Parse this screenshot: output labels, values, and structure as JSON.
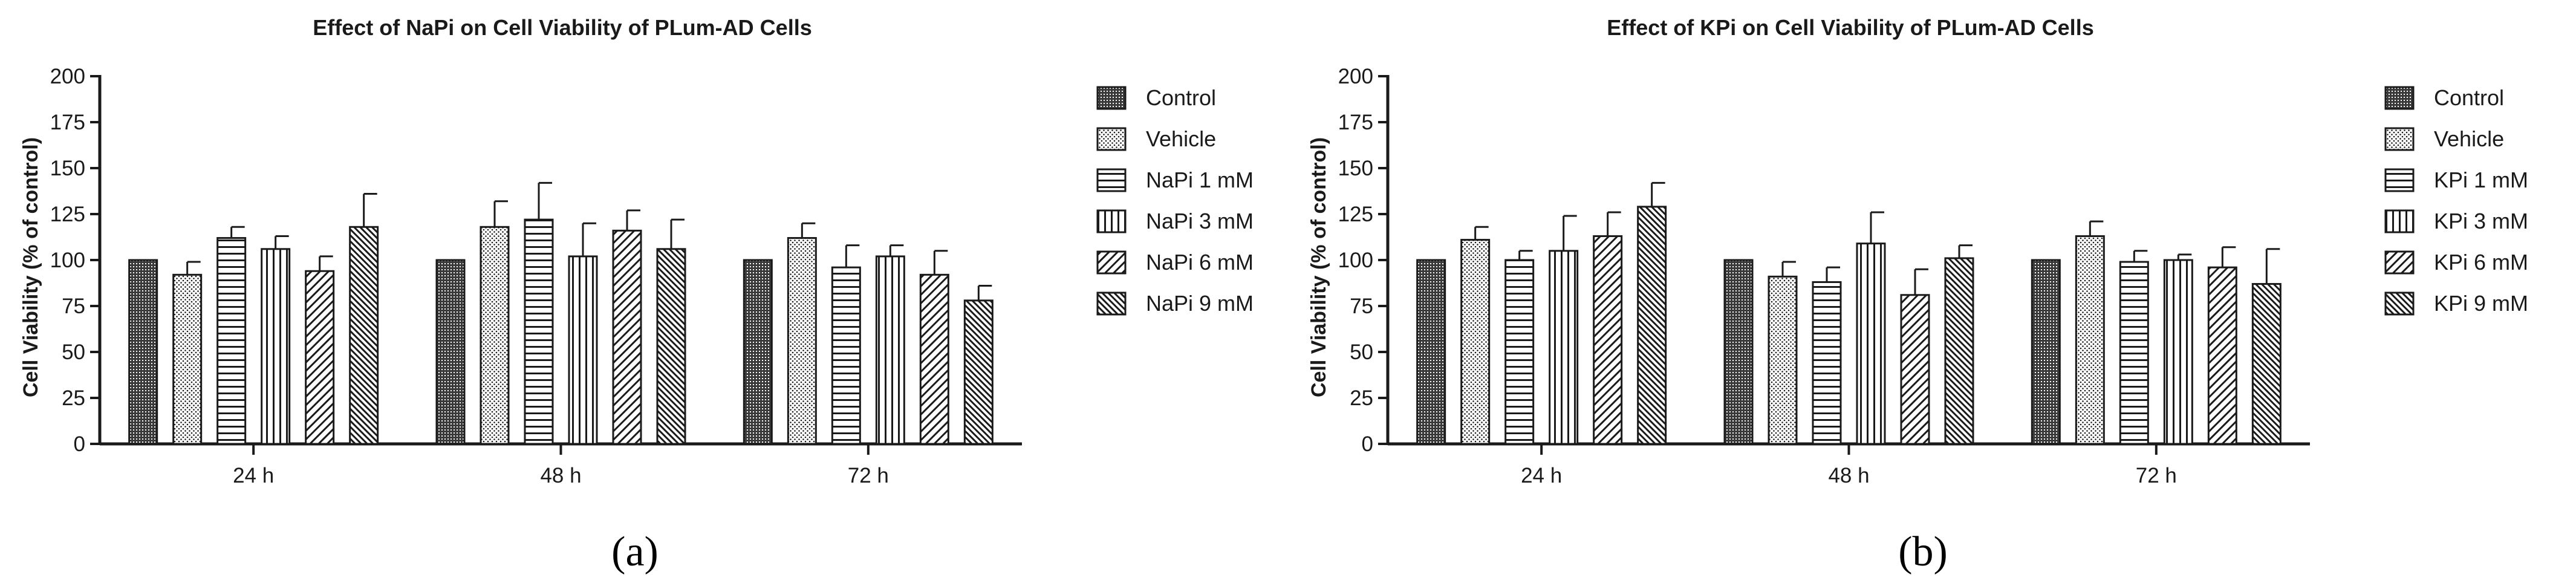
{
  "colors": {
    "ink": "#1a1a1a",
    "background": "#ffffff"
  },
  "chart_data": [
    {
      "type": "bar",
      "panel_label": "(a)",
      "title": "Effect of NaPi on Cell Viability of PLum-AD Cells",
      "xlabel": "",
      "ylabel": "Cell Viability (% of control)",
      "ylim": [
        0,
        200
      ],
      "yticks": [
        0,
        25,
        50,
        75,
        100,
        125,
        150,
        175,
        200
      ],
      "categories": [
        "24 h",
        "48 h",
        "72 h"
      ],
      "legend_position": "right",
      "series": [
        {
          "name": "Control",
          "pattern": "crosshatch-dense",
          "values": [
            100,
            100,
            100
          ],
          "errors": [
            0,
            0,
            0
          ]
        },
        {
          "name": "Vehicle",
          "pattern": "dots",
          "values": [
            92,
            118,
            112
          ],
          "errors": [
            7,
            14,
            8
          ]
        },
        {
          "name": "NaPi 1 mM",
          "pattern": "horizontal",
          "values": [
            112,
            122,
            96
          ],
          "errors": [
            6,
            20,
            12
          ]
        },
        {
          "name": "NaPi 3 mM",
          "pattern": "vertical",
          "values": [
            106,
            102,
            102
          ],
          "errors": [
            7,
            18,
            6
          ]
        },
        {
          "name": "NaPi 6 mM",
          "pattern": "diagonal",
          "values": [
            94,
            116,
            92
          ],
          "errors": [
            8,
            11,
            13
          ]
        },
        {
          "name": "NaPi 9 mM",
          "pattern": "diagonal-dense",
          "values": [
            118,
            106,
            78
          ],
          "errors": [
            18,
            16,
            8
          ]
        }
      ]
    },
    {
      "type": "bar",
      "panel_label": "(b)",
      "title": "Effect of KPi on Cell Viability of PLum-AD Cells",
      "xlabel": "",
      "ylabel": "Cell Viability (% of control)",
      "ylim": [
        0,
        200
      ],
      "yticks": [
        0,
        25,
        50,
        75,
        100,
        125,
        150,
        175,
        200
      ],
      "categories": [
        "24 h",
        "48 h",
        "72 h"
      ],
      "legend_position": "right",
      "series": [
        {
          "name": "Control",
          "pattern": "crosshatch-dense",
          "values": [
            100,
            100,
            100
          ],
          "errors": [
            0,
            0,
            0
          ]
        },
        {
          "name": "Vehicle",
          "pattern": "dots",
          "values": [
            111,
            91,
            113
          ],
          "errors": [
            7,
            8,
            8
          ]
        },
        {
          "name": "KPi 1 mM",
          "pattern": "horizontal",
          "values": [
            100,
            88,
            99
          ],
          "errors": [
            5,
            8,
            6
          ]
        },
        {
          "name": "KPi 3 mM",
          "pattern": "vertical",
          "values": [
            105,
            109,
            100
          ],
          "errors": [
            19,
            17,
            3
          ]
        },
        {
          "name": "KPi 6 mM",
          "pattern": "diagonal",
          "values": [
            113,
            81,
            96
          ],
          "errors": [
            13,
            14,
            11
          ]
        },
        {
          "name": "KPi 9 mM",
          "pattern": "diagonal-dense",
          "values": [
            129,
            101,
            87
          ],
          "errors": [
            13,
            7,
            19
          ]
        }
      ]
    }
  ]
}
